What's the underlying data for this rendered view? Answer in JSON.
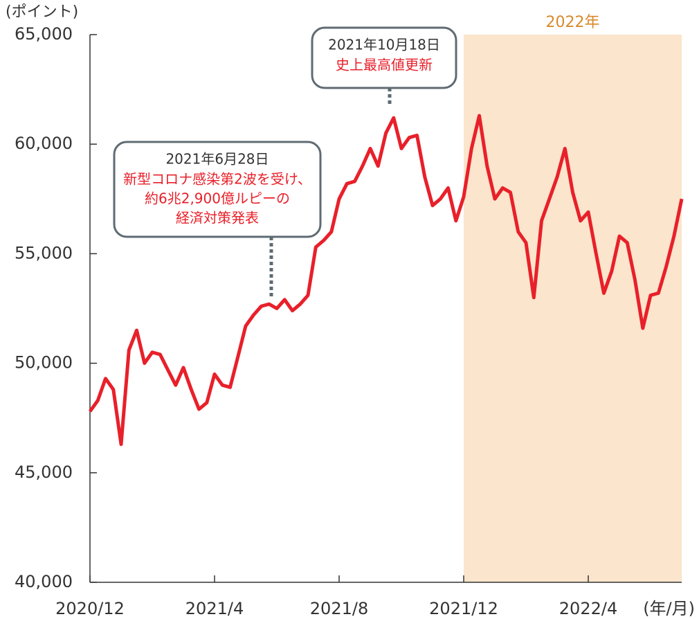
{
  "chart_data": {
    "type": "line",
    "y_axis_label": "(ポイント)",
    "x_axis_label": "(年/月)",
    "categories": [
      "2020/12",
      null,
      null,
      null,
      null,
      null,
      null,
      null,
      null,
      null,
      null,
      null,
      null,
      null,
      null,
      null,
      "2021/4",
      null,
      null,
      null,
      null,
      null,
      null,
      null,
      null,
      null,
      null,
      null,
      null,
      null,
      null,
      null,
      "2021/8",
      null,
      null,
      null,
      null,
      null,
      null,
      null,
      null,
      null,
      null,
      null,
      null,
      null,
      null,
      null,
      "2021/12",
      null,
      null,
      null,
      null,
      null,
      null,
      null,
      null,
      null,
      null,
      null,
      null,
      null,
      null,
      null,
      "2022/4",
      null,
      null,
      null,
      null,
      null,
      null,
      null,
      null,
      null,
      null,
      null,
      null
    ],
    "series": [
      {
        "color": "#e8202a",
        "values": [
          47800,
          48300,
          49300,
          48800,
          46300,
          50600,
          51500,
          50000,
          50500,
          50400,
          49700,
          49000,
          49800,
          48800,
          47900,
          48200,
          49500,
          49000,
          48900,
          50300,
          51700,
          52200,
          52600,
          52700,
          52500,
          52900,
          52400,
          52700,
          53100,
          55300,
          55600,
          56000,
          57500,
          58200,
          58300,
          59000,
          59800,
          59000,
          60500,
          61200,
          59800,
          60300,
          60400,
          58500,
          57200,
          57500,
          58000,
          56500,
          57600,
          59800,
          61300,
          59000,
          57500,
          58000,
          57800,
          56000,
          55500,
          53000,
          56500,
          57500,
          58500,
          59800,
          57800,
          56500,
          56900,
          55000,
          53200,
          54200,
          55800,
          55500,
          53800,
          51600,
          53100,
          53200,
          54400,
          55800,
          57500
        ]
      }
    ],
    "ylim": [
      40000,
      65000
    ],
    "yticks": [
      {
        "value": 40000,
        "label": "40,000"
      },
      {
        "value": 45000,
        "label": "45,000"
      },
      {
        "value": 50000,
        "label": "50,000"
      },
      {
        "value": 55000,
        "label": "55,000"
      },
      {
        "value": 60000,
        "label": "60,000"
      },
      {
        "value": 65000,
        "label": "65,000"
      }
    ],
    "shaded_region": {
      "label": "2022年",
      "from": "2021/12",
      "color": "#fbe5cc",
      "label_color": "#d9892a"
    },
    "annotations": [
      {
        "date": "2021年6月28日",
        "text": [
          "新型コロナ感染第2波を受け、",
          "約6兆2,900億ルピーの",
          "経済対策発表"
        ]
      },
      {
        "date": "2021年10月18日",
        "text": [
          "史上最高値更新"
        ]
      }
    ]
  }
}
